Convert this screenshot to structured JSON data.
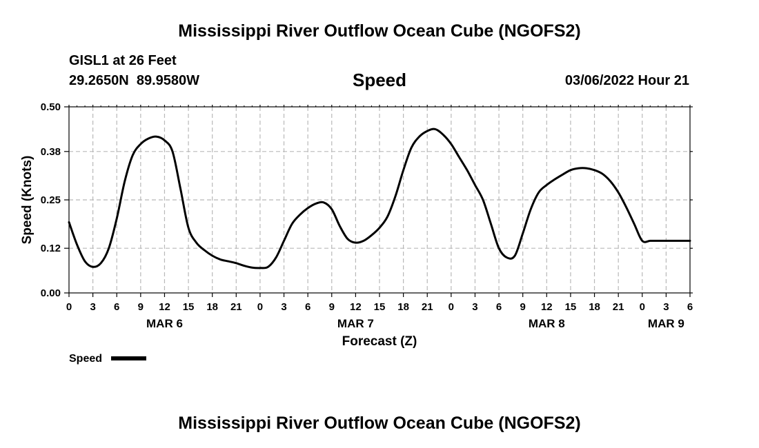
{
  "page": {
    "title_top": "Mississippi River Outflow Ocean Cube (NGOFS2)",
    "title_bottom": "Mississippi River Outflow Ocean Cube (NGOFS2)",
    "station": "GISL1 at 26 Feet",
    "coords": "29.2650N  89.9580W",
    "variable": "Speed",
    "datetime": "03/06/2022 Hour 21"
  },
  "chart_data": {
    "type": "line",
    "title": "Speed",
    "xlabel": "Forecast (Z)",
    "ylabel": "Speed (Knots)",
    "ylim": [
      0,
      0.5
    ],
    "xlim": [
      0,
      78
    ],
    "yticks": [
      0.0,
      0.12,
      0.25,
      0.38,
      0.5
    ],
    "ytick_labels": [
      "0.00",
      "0.12",
      "0.25",
      "0.38",
      "0.50"
    ],
    "xtick_hours": [
      0,
      3,
      6,
      9,
      12,
      15,
      18,
      21,
      24,
      27,
      30,
      33,
      36,
      39,
      42,
      45,
      48,
      51,
      54,
      57,
      60,
      63,
      66,
      69,
      72,
      75,
      78
    ],
    "xtick_labels": [
      "0",
      "3",
      "6",
      "9",
      "12",
      "15",
      "18",
      "21",
      "0",
      "3",
      "6",
      "9",
      "12",
      "15",
      "18",
      "21",
      "0",
      "3",
      "6",
      "9",
      "12",
      "15",
      "18",
      "21",
      "0",
      "3",
      "6"
    ],
    "day_labels": [
      {
        "hour": 12,
        "label": "MAR 6"
      },
      {
        "hour": 36,
        "label": "MAR 7"
      },
      {
        "hour": 60,
        "label": "MAR 8"
      },
      {
        "hour": 75,
        "label": "MAR 9"
      }
    ],
    "grid": true,
    "legend": {
      "label": "Speed",
      "placement": "bottom-left"
    },
    "series": [
      {
        "name": "Speed",
        "color": "#000000",
        "x": [
          0,
          1,
          2,
          3,
          4,
          5,
          6,
          7,
          8,
          9,
          10,
          11,
          12,
          13,
          14,
          15,
          16,
          17,
          18,
          19,
          20,
          21,
          22,
          23,
          24,
          25,
          26,
          27,
          28,
          29,
          30,
          31,
          32,
          33,
          34,
          35,
          36,
          37,
          38,
          39,
          40,
          41,
          42,
          43,
          44,
          45,
          46,
          47,
          48,
          49,
          50,
          51,
          52,
          53,
          54,
          55,
          56,
          57,
          58,
          59,
          60,
          61,
          62,
          63,
          64,
          65,
          66,
          67,
          68,
          69,
          70,
          71,
          72,
          73,
          74,
          75,
          76,
          77,
          78
        ],
        "values": [
          0.19,
          0.13,
          0.085,
          0.07,
          0.08,
          0.12,
          0.2,
          0.3,
          0.37,
          0.4,
          0.415,
          0.42,
          0.41,
          0.38,
          0.28,
          0.175,
          0.135,
          0.115,
          0.1,
          0.09,
          0.085,
          0.08,
          0.073,
          0.068,
          0.067,
          0.07,
          0.095,
          0.14,
          0.185,
          0.21,
          0.228,
          0.24,
          0.243,
          0.225,
          0.18,
          0.145,
          0.135,
          0.14,
          0.155,
          0.175,
          0.205,
          0.26,
          0.33,
          0.39,
          0.42,
          0.435,
          0.44,
          0.425,
          0.4,
          0.365,
          0.33,
          0.29,
          0.25,
          0.185,
          0.12,
          0.095,
          0.1,
          0.16,
          0.225,
          0.27,
          0.29,
          0.305,
          0.318,
          0.33,
          0.335,
          0.335,
          0.33,
          0.32,
          0.3,
          0.27,
          0.23,
          0.185,
          0.14,
          0.14,
          0.14,
          0.14,
          0.14,
          0.14,
          0.14
        ]
      }
    ]
  }
}
